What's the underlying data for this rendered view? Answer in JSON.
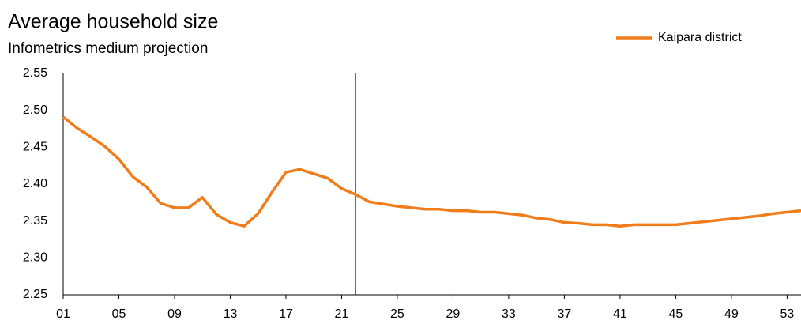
{
  "chart_data": {
    "type": "line",
    "title": "Average household size",
    "subtitle": "Infometrics medium projection",
    "x": [
      1,
      2,
      3,
      4,
      5,
      6,
      7,
      8,
      9,
      10,
      11,
      12,
      13,
      14,
      15,
      16,
      17,
      18,
      19,
      20,
      21,
      22,
      23,
      24,
      25,
      26,
      27,
      28,
      29,
      30,
      31,
      32,
      33,
      34,
      35,
      36,
      37,
      38,
      39,
      40,
      41,
      42,
      43,
      44,
      45,
      46,
      47,
      48,
      49,
      50,
      51,
      52,
      53,
      54
    ],
    "series": [
      {
        "name": "Kaipara district",
        "color": "#f07d1a",
        "values": [
          2.491,
          2.476,
          2.464,
          2.451,
          2.434,
          2.41,
          2.396,
          2.374,
          2.368,
          2.368,
          2.382,
          2.359,
          2.348,
          2.343,
          2.36,
          2.389,
          2.416,
          2.42,
          2.414,
          2.408,
          2.394,
          2.386,
          2.376,
          2.373,
          2.37,
          2.368,
          2.366,
          2.366,
          2.364,
          2.364,
          2.362,
          2.362,
          2.36,
          2.358,
          2.354,
          2.352,
          2.348,
          2.347,
          2.345,
          2.345,
          2.343,
          2.345,
          2.345,
          2.345,
          2.345,
          2.347,
          2.349,
          2.351,
          2.353,
          2.355,
          2.357,
          2.36,
          2.362,
          2.364
        ]
      }
    ],
    "xlim": [
      1,
      54
    ],
    "xticks": [
      {
        "value": 1,
        "label": "01"
      },
      {
        "value": 5,
        "label": "05"
      },
      {
        "value": 9,
        "label": "09"
      },
      13,
      17,
      21,
      25,
      29,
      33,
      37,
      41,
      45,
      49,
      53
    ],
    "ylim": [
      2.25,
      2.55
    ],
    "yticks": [
      2.25,
      {
        "value": 2.3,
        "label": "2.30"
      },
      2.35,
      {
        "value": 2.4,
        "label": "2.40"
      },
      2.45,
      {
        "value": 2.5,
        "label": "2.50"
      },
      2.55
    ],
    "vline_x": 22,
    "legend": "top-right"
  }
}
